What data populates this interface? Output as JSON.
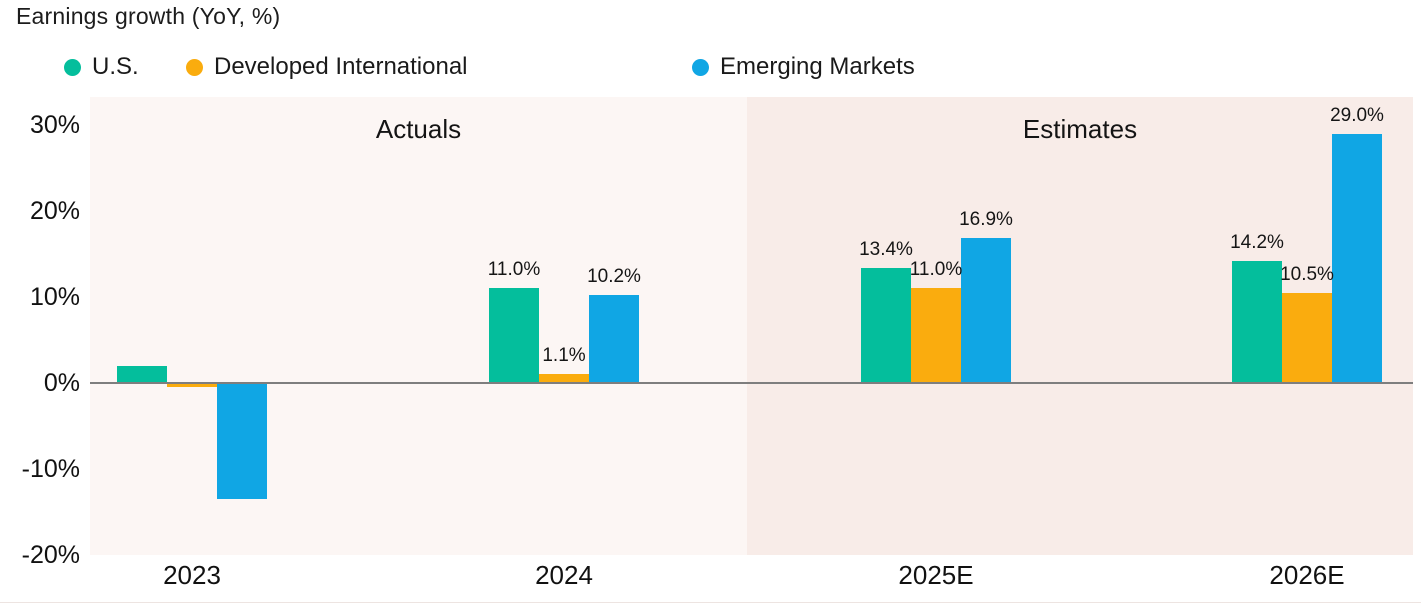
{
  "title": "Earnings growth (YoY, %)",
  "chart_data": {
    "type": "bar",
    "title": "Earnings growth (YoY, %)",
    "categories": [
      "2023",
      "2024",
      "2025E",
      "2026E"
    ],
    "series": [
      {
        "name": "U.S.",
        "color": "#04BE9C",
        "values": [
          2.0,
          11.0,
          13.4,
          14.2
        ],
        "data_labels": [
          "",
          "11.0%",
          "13.4%",
          "14.2%"
        ]
      },
      {
        "name": "Developed International",
        "color": "#FAAC0E",
        "values": [
          -0.5,
          1.1,
          11.0,
          10.5
        ],
        "data_labels": [
          "",
          "1.1%",
          "11.0%",
          "10.5%"
        ]
      },
      {
        "name": "Emerging Markets",
        "color": "#10A6E4",
        "values": [
          -13.5,
          10.2,
          16.9,
          29.0
        ],
        "data_labels": [
          "",
          "10.2%",
          "16.9%",
          "29.0%"
        ]
      }
    ],
    "sections": [
      {
        "label": "Actuals",
        "categories": [
          "2023",
          "2024"
        ],
        "background": "#FCF6F4"
      },
      {
        "label": "Estimates",
        "categories": [
          "2025E",
          "2026E"
        ],
        "background": "#F8ECE8"
      }
    ],
    "y_axis": {
      "ticks": [
        {
          "value": 30,
          "label": "30%"
        },
        {
          "value": 20,
          "label": "20%"
        },
        {
          "value": 10,
          "label": "10%"
        },
        {
          "value": 0,
          "label": "0%"
        },
        {
          "value": -10,
          "label": "-10%"
        },
        {
          "value": -20,
          "label": "-20%"
        }
      ],
      "range": [
        -20,
        33
      ]
    },
    "legend_position": "top",
    "grid": false,
    "zero_line_color": "#7E7E7E"
  }
}
